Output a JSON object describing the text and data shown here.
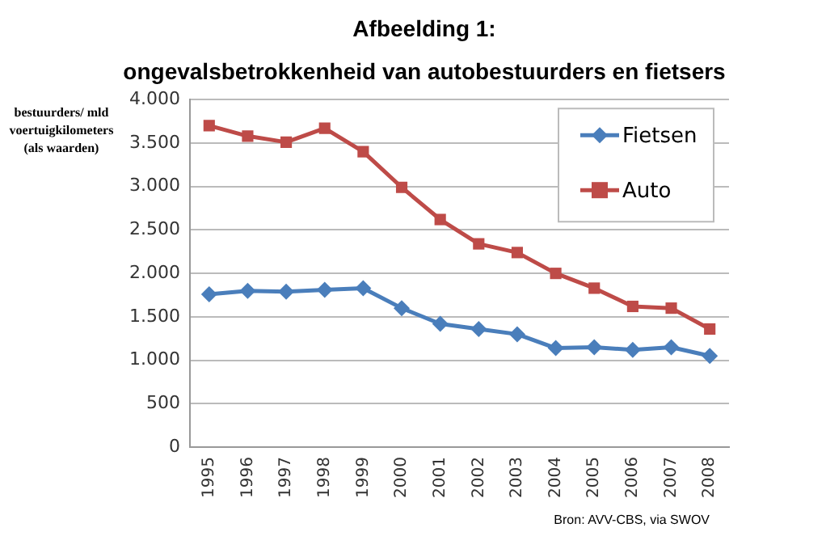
{
  "chart_data": {
    "type": "line",
    "title": "Afbeelding 1:",
    "subtitle": "ongevalsbetrokkenheid van autobestuurders en fietsers",
    "ylabel": "bestuurders/ mld voertuigkilometers (als waarden)",
    "categories": [
      "1995",
      "1996",
      "1997",
      "1998",
      "1999",
      "2000",
      "2001",
      "2002",
      "2003",
      "2004",
      "2005",
      "2006",
      "2007",
      "2008"
    ],
    "series": [
      {
        "name": "Fietsen",
        "color": "#4a7ebb",
        "marker": "diamond",
        "values": [
          1760,
          1800,
          1790,
          1810,
          1830,
          1600,
          1420,
          1360,
          1300,
          1140,
          1150,
          1120,
          1150,
          1050
        ]
      },
      {
        "name": "Auto",
        "color": "#be4b48",
        "marker": "square",
        "values": [
          3700,
          3580,
          3510,
          3670,
          3400,
          2990,
          2620,
          2340,
          2240,
          2000,
          1830,
          1620,
          1600,
          1360
        ]
      }
    ],
    "ylim": [
      0,
      4000
    ],
    "yticks": [
      {
        "value": 0,
        "label": "0"
      },
      {
        "value": 500,
        "label": "500"
      },
      {
        "value": 1000,
        "label": "1.000"
      },
      {
        "value": 1500,
        "label": "1.500"
      },
      {
        "value": 2000,
        "label": "2.000"
      },
      {
        "value": 2500,
        "label": "2.500"
      },
      {
        "value": 3000,
        "label": "3.000"
      },
      {
        "value": 3500,
        "label": "3.500"
      },
      {
        "value": 4000,
        "label": "4.000"
      }
    ],
    "grid": "y",
    "legend": "top right",
    "line_style": "solid",
    "annotations": [
      "Bron: AVV-CBS, via SWOV"
    ]
  }
}
